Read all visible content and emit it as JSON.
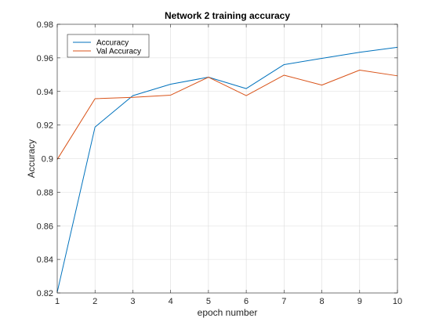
{
  "chart_data": {
    "type": "line",
    "title": "Network 2 training accuracy",
    "xlabel": "epoch number",
    "ylabel": "Accuracy",
    "x": [
      1,
      2,
      3,
      4,
      5,
      6,
      7,
      8,
      9,
      10
    ],
    "xlim": [
      1,
      10
    ],
    "ylim": [
      0.82,
      0.98
    ],
    "xticks": [
      1,
      2,
      3,
      4,
      5,
      6,
      7,
      8,
      9,
      10
    ],
    "yticks": [
      0.82,
      0.84,
      0.86,
      0.88,
      0.9,
      0.92,
      0.94,
      0.96,
      0.98
    ],
    "grid": true,
    "legend_position": "top-left",
    "series": [
      {
        "name": "Accuracy",
        "color": "#0072BD",
        "values": [
          0.8205,
          0.9188,
          0.9375,
          0.9443,
          0.9485,
          0.9417,
          0.956,
          0.9597,
          0.9633,
          0.9663
        ]
      },
      {
        "name": "Val Accuracy",
        "color": "#D95319",
        "values": [
          0.8995,
          0.9357,
          0.9365,
          0.9378,
          0.9485,
          0.9375,
          0.9497,
          0.9438,
          0.9527,
          0.9493
        ]
      }
    ]
  }
}
